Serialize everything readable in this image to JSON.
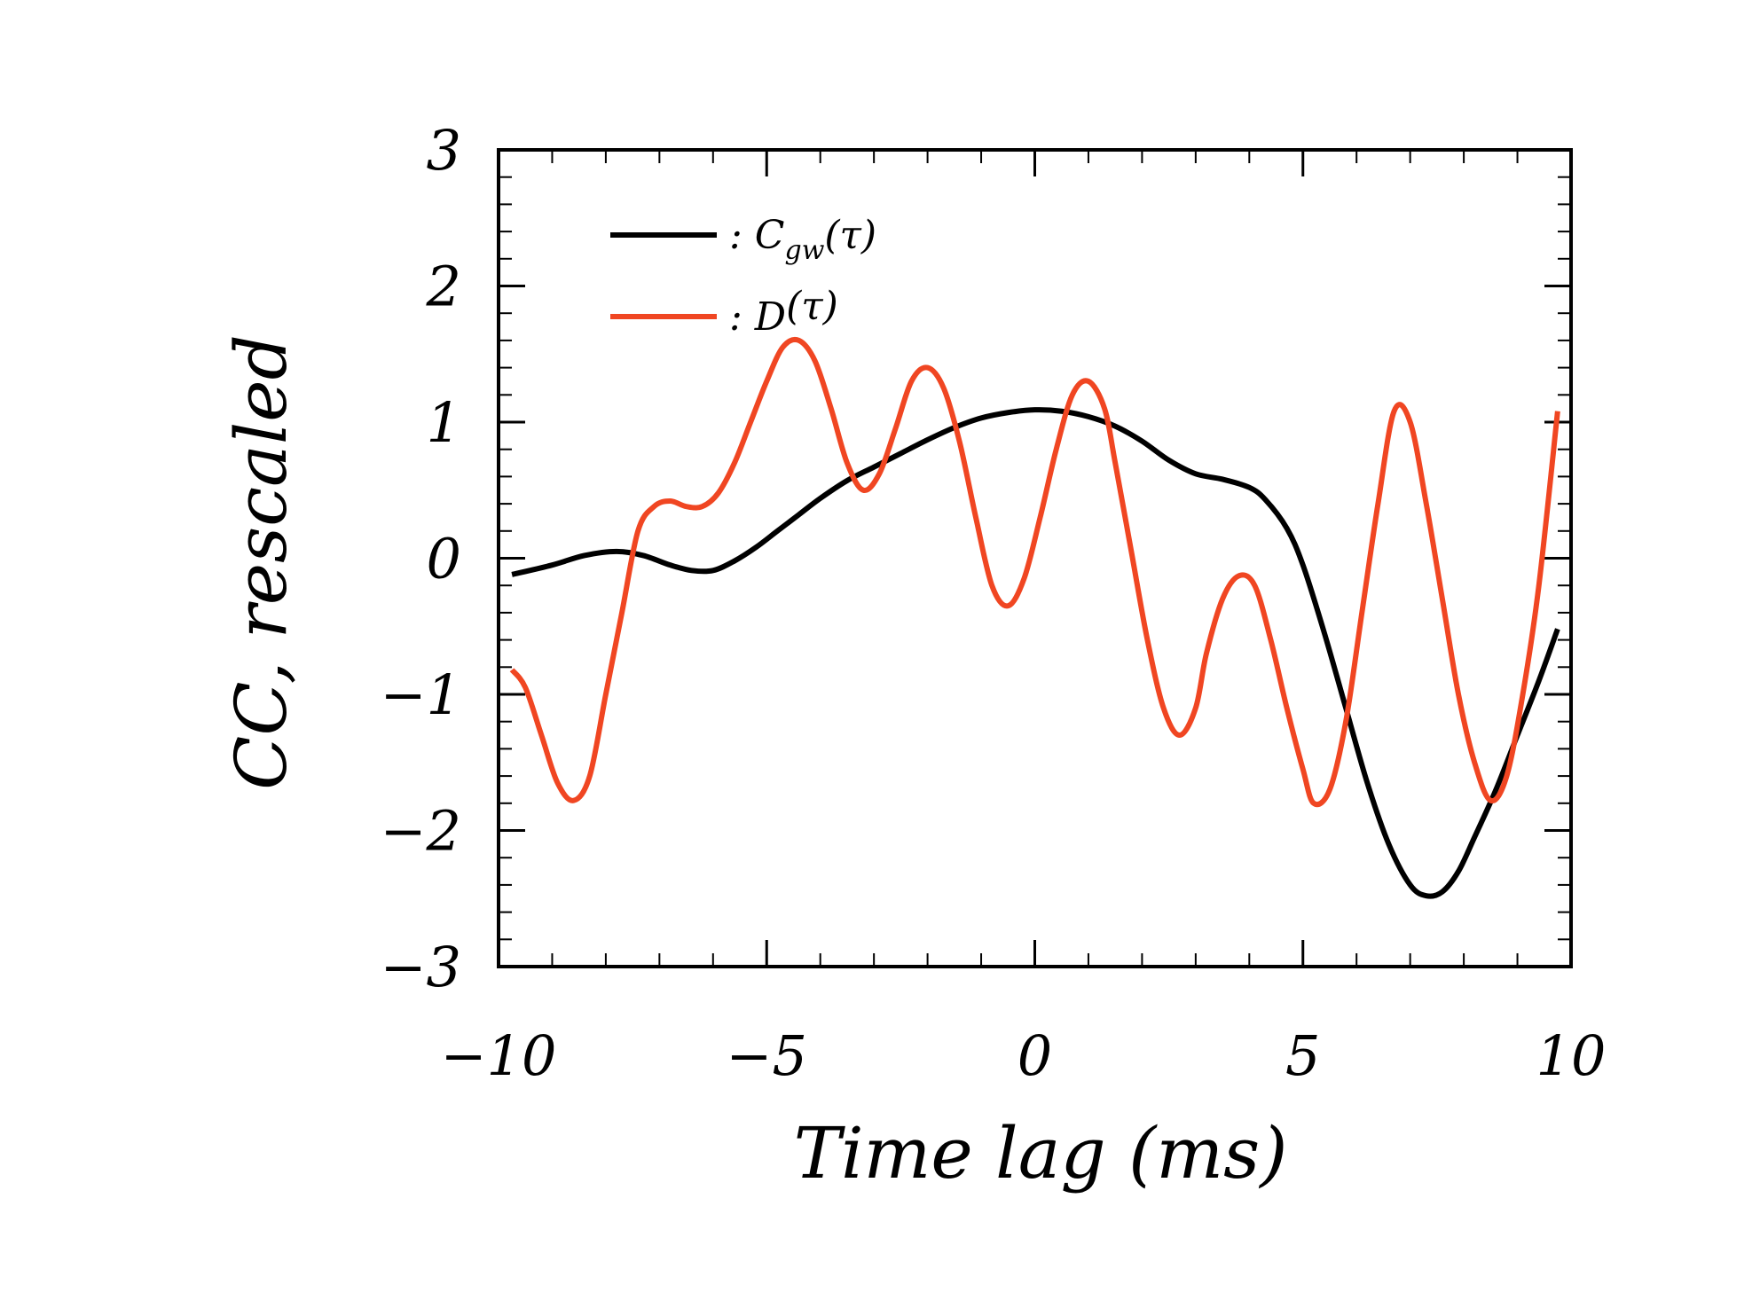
{
  "chart_data": {
    "type": "line",
    "title": "",
    "xlabel": "Time lag (ms)",
    "ylabel": "CC, rescaled",
    "xlim": [
      -10,
      10
    ],
    "ylim": [
      -3,
      3
    ],
    "xticks": [
      -10,
      -5,
      0,
      5,
      10
    ],
    "xtick_labels": [
      "−10",
      "−5",
      "0",
      "5",
      "10"
    ],
    "yticks": [
      -3,
      -2,
      -1,
      0,
      1,
      2,
      3
    ],
    "ytick_labels": [
      "−3",
      "−2",
      "−1",
      "0",
      "1",
      "2",
      "3"
    ],
    "grid": false,
    "legend_position": "top-left",
    "series": [
      {
        "name": "C_gw(τ)",
        "legend_main": ": C",
        "legend_sub": "gw",
        "legend_tail": "(τ)",
        "color": "#000000",
        "x": [
          -9.75,
          -9.0,
          -8.4,
          -7.8,
          -7.3,
          -6.8,
          -6.4,
          -6.0,
          -5.6,
          -5.2,
          -4.8,
          -4.4,
          -4.0,
          -3.5,
          -3.0,
          -2.5,
          -2.0,
          -1.5,
          -1.0,
          -0.5,
          0.0,
          0.5,
          1.0,
          1.5,
          2.0,
          2.5,
          3.0,
          3.5,
          4.0,
          4.3,
          4.7,
          5.0,
          5.4,
          5.8,
          6.2,
          6.6,
          7.0,
          7.3,
          7.6,
          7.9,
          8.2,
          8.6,
          9.0,
          9.4,
          9.75
        ],
        "y": [
          -0.12,
          -0.05,
          0.02,
          0.05,
          0.02,
          -0.05,
          -0.09,
          -0.09,
          -0.02,
          0.08,
          0.2,
          0.32,
          0.44,
          0.57,
          0.67,
          0.77,
          0.87,
          0.96,
          1.03,
          1.07,
          1.09,
          1.08,
          1.04,
          0.97,
          0.86,
          0.72,
          0.62,
          0.58,
          0.52,
          0.43,
          0.22,
          -0.05,
          -0.55,
          -1.1,
          -1.65,
          -2.1,
          -2.4,
          -2.48,
          -2.45,
          -2.3,
          -2.05,
          -1.7,
          -1.3,
          -0.9,
          -0.52
        ]
      },
      {
        "name": "D(τ)",
        "legend_main": ": D",
        "legend_sub": "",
        "legend_tail": "(τ)",
        "color": "#f04622",
        "x": [
          -9.75,
          -9.5,
          -9.2,
          -8.9,
          -8.6,
          -8.3,
          -8.0,
          -7.7,
          -7.4,
          -7.1,
          -6.8,
          -6.5,
          -6.2,
          -5.9,
          -5.6,
          -5.3,
          -5.0,
          -4.7,
          -4.4,
          -4.1,
          -3.8,
          -3.5,
          -3.2,
          -2.9,
          -2.6,
          -2.3,
          -2.0,
          -1.7,
          -1.4,
          -1.1,
          -0.8,
          -0.5,
          -0.2,
          0.1,
          0.4,
          0.7,
          1.0,
          1.3,
          1.5,
          1.8,
          2.1,
          2.4,
          2.7,
          3.0,
          3.2,
          3.5,
          3.8,
          4.1,
          4.4,
          4.7,
          5.0,
          5.2,
          5.5,
          5.8,
          6.1,
          6.4,
          6.7,
          7.0,
          7.3,
          7.6,
          7.9,
          8.2,
          8.5,
          8.8,
          9.1,
          9.4,
          9.75
        ],
        "y": [
          -0.82,
          -0.95,
          -1.3,
          -1.65,
          -1.78,
          -1.6,
          -1.0,
          -0.4,
          0.2,
          0.38,
          0.42,
          0.38,
          0.38,
          0.48,
          0.7,
          1.0,
          1.3,
          1.55,
          1.6,
          1.45,
          1.1,
          0.7,
          0.5,
          0.62,
          0.95,
          1.3,
          1.4,
          1.25,
          0.85,
          0.3,
          -0.2,
          -0.35,
          -0.15,
          0.3,
          0.8,
          1.2,
          1.3,
          1.1,
          0.7,
          0.05,
          -0.6,
          -1.1,
          -1.3,
          -1.1,
          -0.7,
          -0.3,
          -0.13,
          -0.2,
          -0.6,
          -1.1,
          -1.55,
          -1.8,
          -1.7,
          -1.2,
          -0.4,
          0.4,
          1.08,
          1.0,
          0.4,
          -0.3,
          -1.0,
          -1.5,
          -1.78,
          -1.6,
          -1.0,
          -0.2,
          1.08
        ]
      }
    ]
  }
}
